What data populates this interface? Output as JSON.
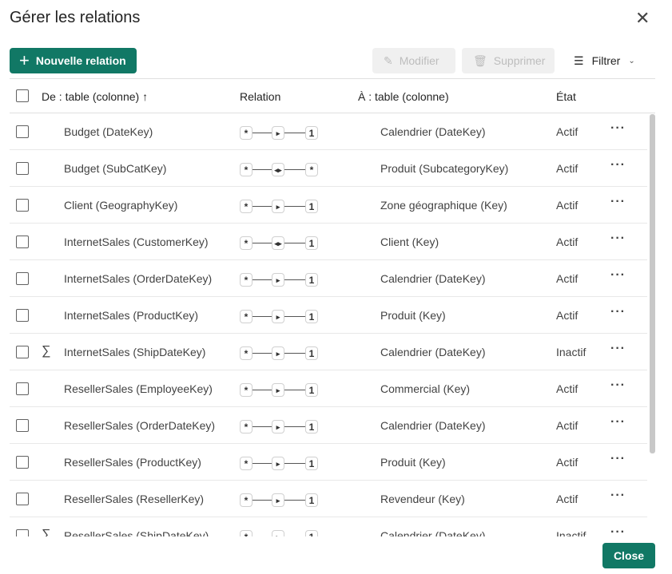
{
  "dialog": {
    "title": "Gérer les relations",
    "close_label": "Close"
  },
  "toolbar": {
    "new": "Nouvelle relation",
    "edit": "Modifier",
    "delete": "Supprimer",
    "filter": "Filtrer"
  },
  "colors": {
    "accent": "#117865"
  },
  "columns": {
    "from": "De : table (colonne)",
    "relation": "Relation",
    "to": "À : table (colonne)",
    "state": "État"
  },
  "rows": [
    {
      "from": "Budget (DateKey)",
      "left": "*",
      "mid": "single",
      "right": "1",
      "to": "Calendrier (DateKey)",
      "state": "Actif",
      "measure": false
    },
    {
      "from": "Budget (SubCatKey)",
      "left": "*",
      "mid": "both",
      "right": "*",
      "to": "Produit (SubcategoryKey)",
      "state": "Actif",
      "measure": false
    },
    {
      "from": "Client (GeographyKey)",
      "left": "*",
      "mid": "single",
      "right": "1",
      "to": "Zone géographique (Key)",
      "state": "Actif",
      "measure": false
    },
    {
      "from": "InternetSales (CustomerKey)",
      "left": "*",
      "mid": "both",
      "right": "1",
      "to": "Client (Key)",
      "state": "Actif",
      "measure": false
    },
    {
      "from": "InternetSales (OrderDateKey)",
      "left": "*",
      "mid": "single",
      "right": "1",
      "to": "Calendrier (DateKey)",
      "state": "Actif",
      "measure": false
    },
    {
      "from": "InternetSales (ProductKey)",
      "left": "*",
      "mid": "single",
      "right": "1",
      "to": "Produit (Key)",
      "state": "Actif",
      "measure": false
    },
    {
      "from": "InternetSales (ShipDateKey)",
      "left": "*",
      "mid": "single",
      "right": "1",
      "to": "Calendrier (DateKey)",
      "state": "Inactif",
      "measure": true
    },
    {
      "from": "ResellerSales (EmployeeKey)",
      "left": "*",
      "mid": "single",
      "right": "1",
      "to": "Commercial (Key)",
      "state": "Actif",
      "measure": false
    },
    {
      "from": "ResellerSales (OrderDateKey)",
      "left": "*",
      "mid": "single",
      "right": "1",
      "to": "Calendrier (DateKey)",
      "state": "Actif",
      "measure": false
    },
    {
      "from": "ResellerSales (ProductKey)",
      "left": "*",
      "mid": "single",
      "right": "1",
      "to": "Produit (Key)",
      "state": "Actif",
      "measure": false
    },
    {
      "from": "ResellerSales (ResellerKey)",
      "left": "*",
      "mid": "single",
      "right": "1",
      "to": "Revendeur (Key)",
      "state": "Actif",
      "measure": false
    },
    {
      "from": "ResellerSales (ShipDateKey)",
      "left": "*",
      "mid": "single",
      "right": "1",
      "to": "Calendrier (DateKey)",
      "state": "Inactif",
      "measure": true
    }
  ]
}
